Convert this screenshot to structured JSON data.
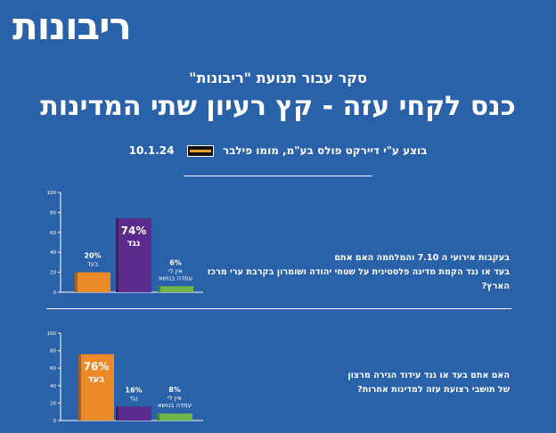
{
  "brand": {
    "logo_text": "ריבונות"
  },
  "header": {
    "subtitle": "סקר עבור תנועת \"ריבונות\"",
    "title": "כנס לקחי עזה - קץ רעיון שתי המדינות",
    "byline": "בוצע ע\"י דיירקט פולס בע\"מ, מומו פילבר",
    "date": "10.1.24",
    "pollster_logo": "direct-polls-logo"
  },
  "questions": [
    {
      "line1": "בעקבות אירועי ה 7.10 והמלחמה האם אתם",
      "line2": "בעד או נגד הקמת מדינה פלסטינית על שטחי יהודה ושומרון בקרבת ערי מרכז הארץ?"
    },
    {
      "line1": "האם אתם בעד או נגד עידוד הגירה מרצון",
      "line2": "של תושבי רצועת עזה למדינות אחרות?"
    }
  ],
  "colors": {
    "background": "#2a62aa",
    "orange": "#ec8a2a",
    "purple": "#5a2a8c",
    "green": "#6fb54a",
    "axis": "#ffffff"
  },
  "chart_data": [
    {
      "type": "bar",
      "categories": [
        "בעד",
        "נגד",
        "אין לי עמדה בנושא"
      ],
      "values": [
        20,
        74,
        6
      ],
      "value_labels": [
        "20%",
        "74%",
        "6%"
      ],
      "category_labels": [
        [
          "בעד"
        ],
        [
          "נגד"
        ],
        [
          "אין לי",
          "עמדה בנושא"
        ]
      ],
      "colors": [
        "#ec8a2a",
        "#5a2a8c",
        "#6fb54a"
      ],
      "highlight_index": 1,
      "yticks": [
        0,
        20,
        40,
        60,
        80,
        100
      ],
      "ylim": [
        0,
        100
      ],
      "grid": false,
      "legend": "none",
      "xlabel": "",
      "ylabel": ""
    },
    {
      "type": "bar",
      "categories": [
        "בעד",
        "נגד",
        "אין לי עמדה בנושא"
      ],
      "values": [
        76,
        16,
        8
      ],
      "value_labels": [
        "76%",
        "16%",
        "8%"
      ],
      "category_labels": [
        [
          "בעד"
        ],
        [
          "נגד"
        ],
        [
          "אין לי",
          "עמדה בנושא"
        ]
      ],
      "colors": [
        "#ec8a2a",
        "#5a2a8c",
        "#6fb54a"
      ],
      "highlight_index": 0,
      "yticks": [
        0,
        20,
        40,
        60,
        80,
        100
      ],
      "ylim": [
        0,
        100
      ],
      "grid": false,
      "legend": "none",
      "xlabel": "",
      "ylabel": ""
    }
  ]
}
